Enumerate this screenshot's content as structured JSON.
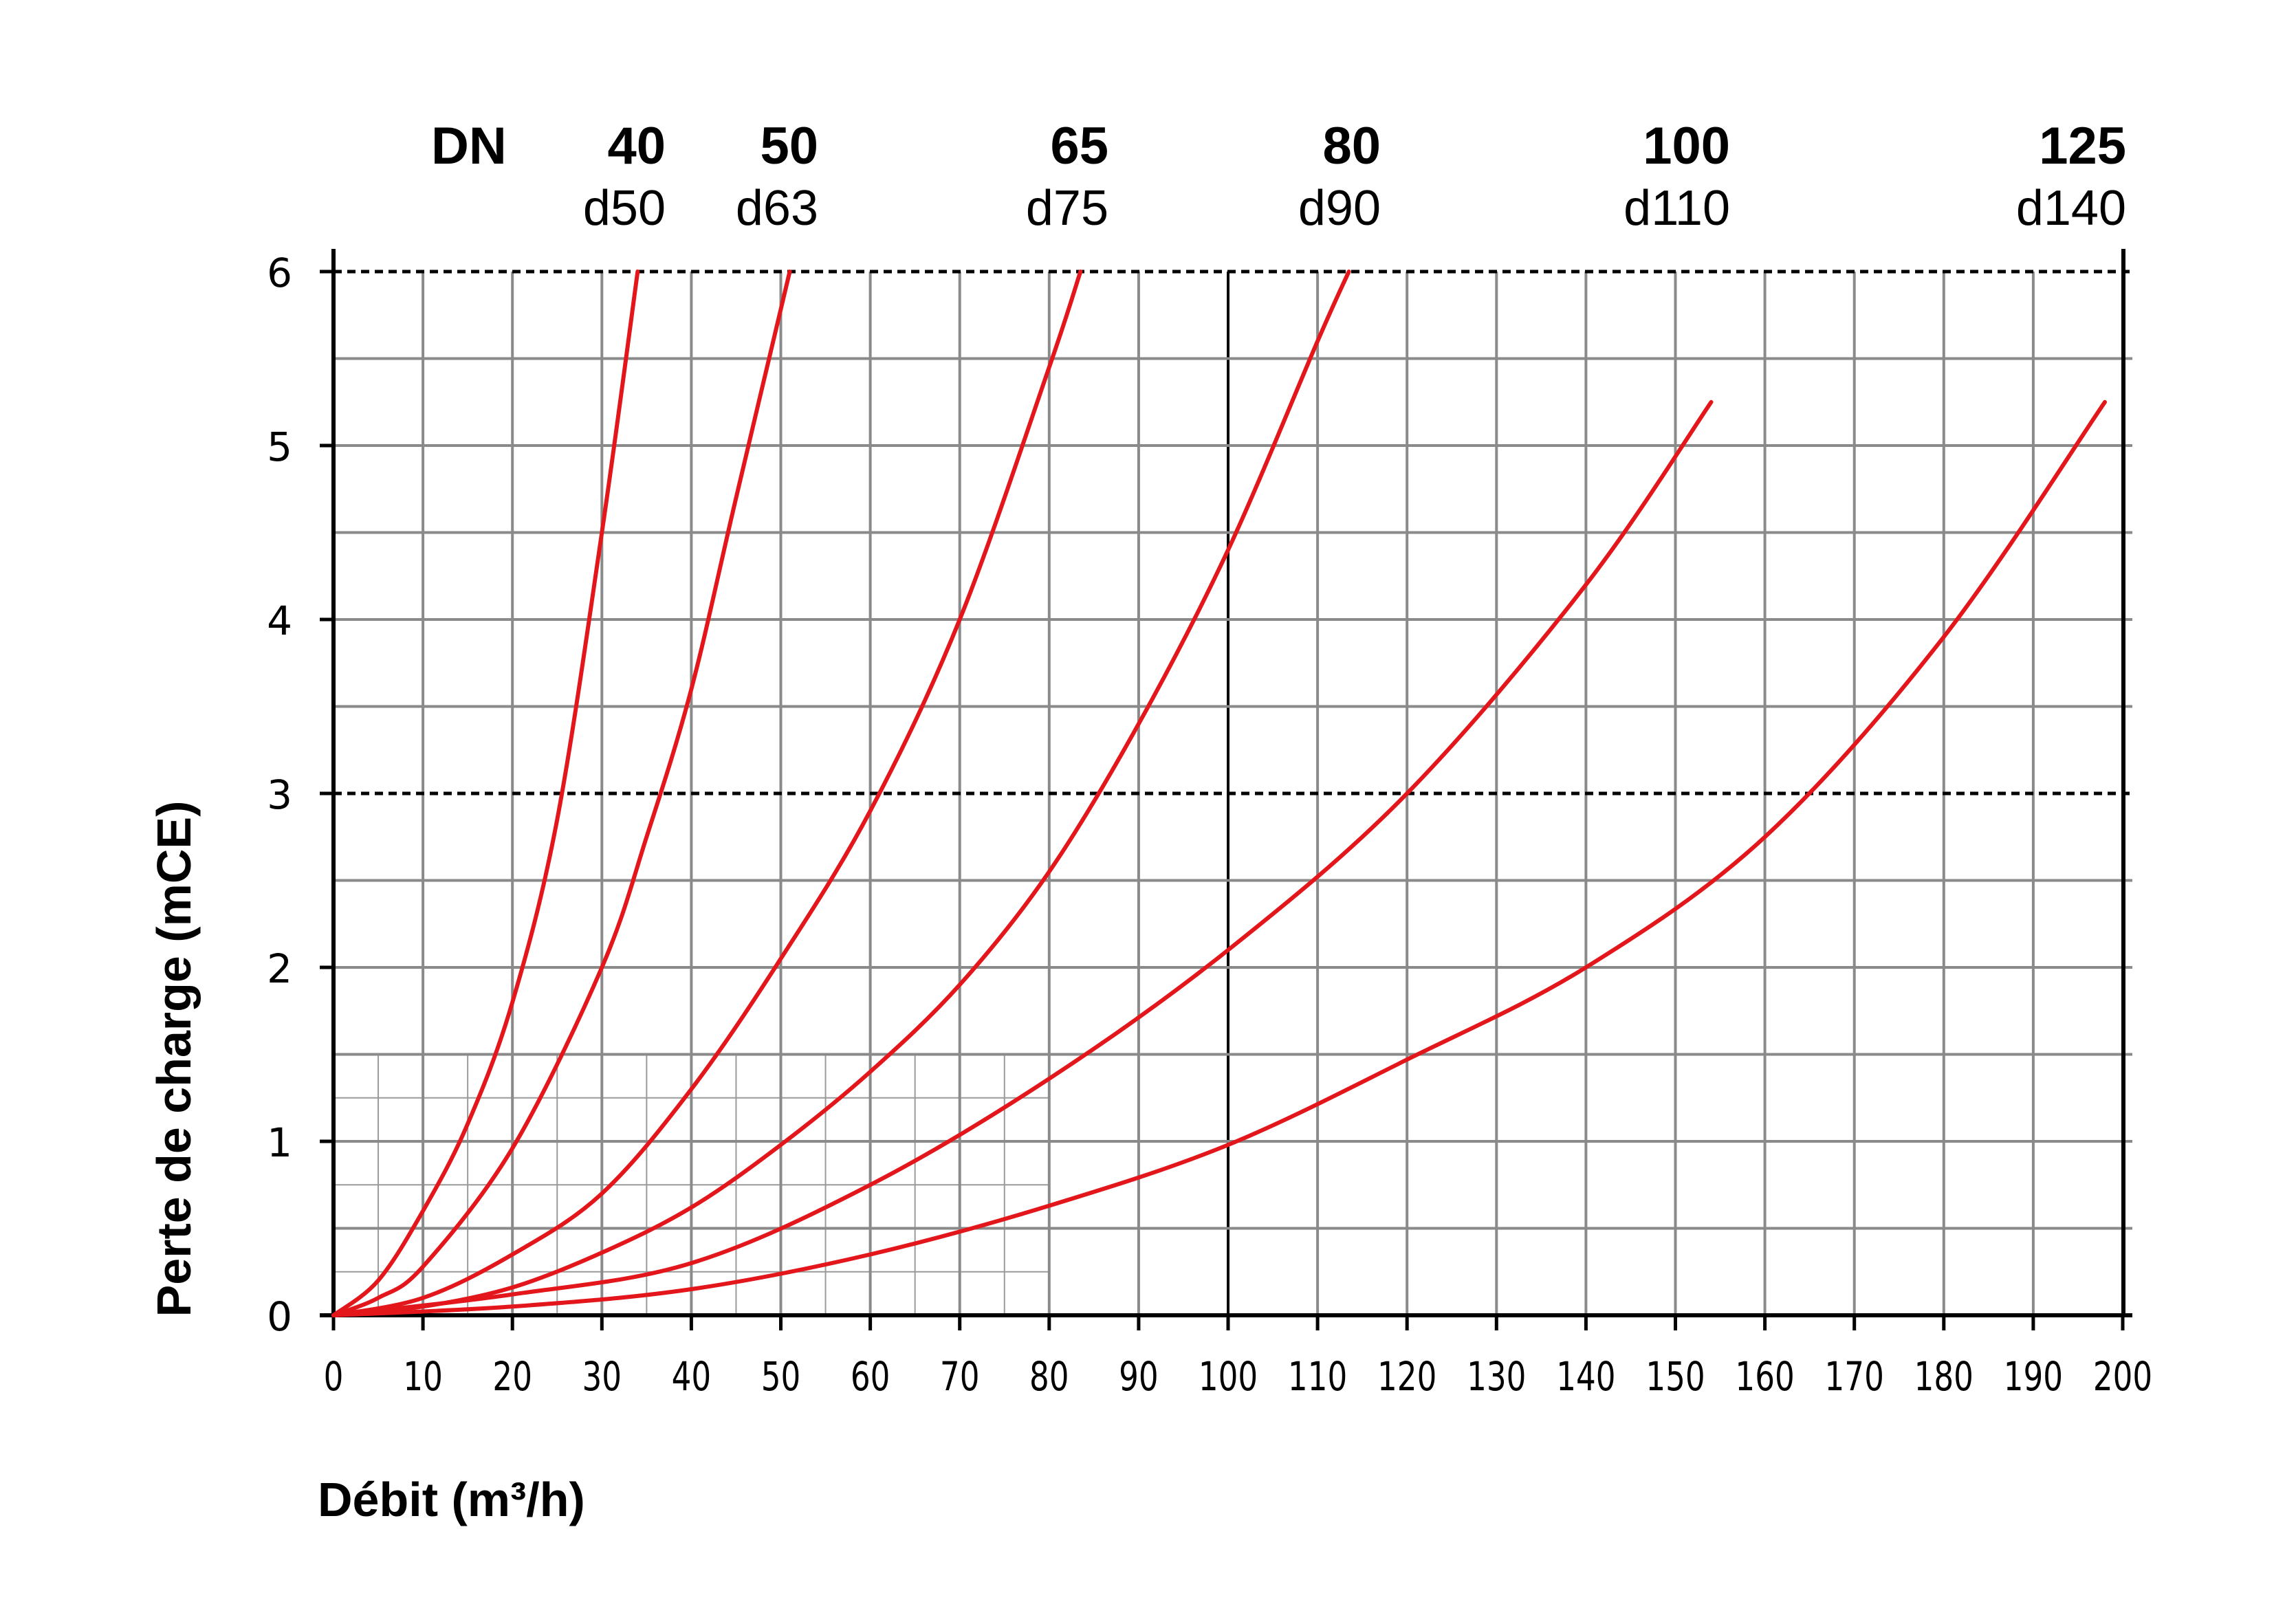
{
  "chart_data": {
    "type": "line",
    "xlabel": "Débit (m³/h)",
    "ylabel": "Perte de charge (mCE)",
    "xlim": [
      0,
      200
    ],
    "ylim": [
      0,
      6
    ],
    "x_ticks": [
      "0",
      "10",
      "20",
      "30",
      "40",
      "50",
      "60",
      "70",
      "80",
      "90",
      "100",
      "110",
      "120",
      "130",
      "140",
      "150",
      "160",
      "170",
      "180",
      "190",
      "200"
    ],
    "y_ticks": [
      "0",
      "1",
      "2",
      "3",
      "4",
      "5",
      "6"
    ],
    "dn_prefix": "DN",
    "grid": true,
    "dashed_reference_lines": [
      3,
      6
    ],
    "line_color": "#e3161b",
    "series": [
      {
        "name": "40",
        "sub": "d50",
        "x": [
          0,
          5,
          10,
          15,
          20,
          25,
          30,
          34
        ],
        "y": [
          0,
          0.2,
          0.6,
          1.1,
          1.8,
          2.85,
          4.5,
          6.0
        ]
      },
      {
        "name": "50",
        "sub": "d63",
        "x": [
          0,
          5,
          10,
          20,
          30,
          35,
          40,
          45,
          51
        ],
        "y": [
          0,
          0.1,
          0.28,
          0.96,
          2.0,
          2.75,
          3.6,
          4.7,
          6.0
        ]
      },
      {
        "name": "65",
        "sub": "d75",
        "x": [
          0,
          10,
          20,
          30,
          40,
          50,
          60,
          70,
          80,
          83.5
        ],
        "y": [
          0,
          0.1,
          0.35,
          0.7,
          1.3,
          2.05,
          2.9,
          4.0,
          5.45,
          6.0
        ]
      },
      {
        "name": "80",
        "sub": "d90",
        "x": [
          0,
          10,
          20,
          30,
          40,
          50,
          60,
          70,
          80,
          90,
          100,
          110,
          113.5
        ],
        "y": [
          0,
          0.05,
          0.16,
          0.36,
          0.62,
          0.98,
          1.4,
          1.9,
          2.55,
          3.4,
          4.4,
          5.6,
          6.0
        ]
      },
      {
        "name": "100",
        "sub": "d110",
        "x": [
          0,
          20,
          40,
          60,
          80,
          100,
          120,
          140,
          154
        ],
        "y": [
          0,
          0.12,
          0.3,
          0.75,
          1.36,
          2.1,
          3.0,
          4.2,
          5.25
        ]
      },
      {
        "name": "125",
        "sub": "d140",
        "x": [
          0,
          20,
          40,
          60,
          80,
          100,
          120,
          140,
          160,
          180,
          198
        ],
        "y": [
          0,
          0.05,
          0.15,
          0.35,
          0.63,
          0.98,
          1.47,
          2.0,
          2.75,
          3.9,
          5.25
        ]
      }
    ]
  }
}
